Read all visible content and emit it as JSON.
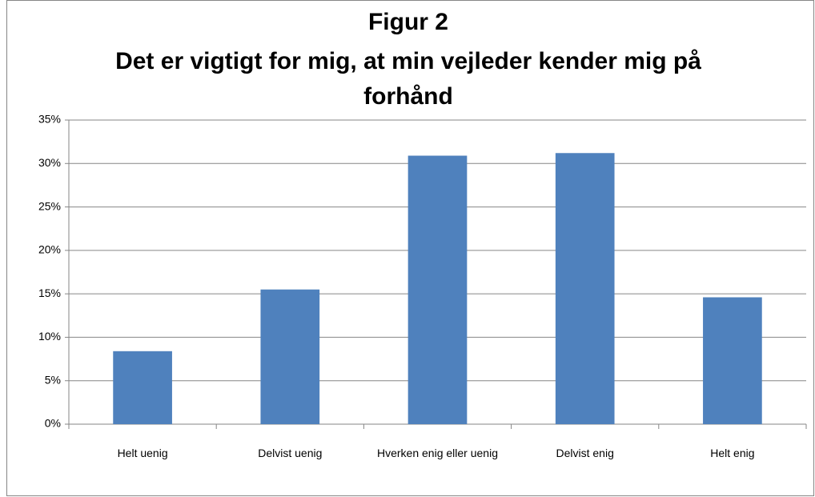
{
  "chart_data": {
    "type": "bar",
    "title": "Figur 2",
    "subtitle": "Det er vigtigt for mig, at min vejleder kender mig på forhånd",
    "categories": [
      "Helt uenig",
      "Delvist uenig",
      "Hverken enig eller uenig",
      "Delvist enig",
      "Helt enig"
    ],
    "values": [
      8.4,
      15.5,
      30.9,
      31.2,
      14.6
    ],
    "color": "#4f81bd",
    "ylim": [
      0,
      35
    ],
    "yticks": [
      {
        "value": 0,
        "label": "0%"
      },
      {
        "value": 5,
        "label": "5%"
      },
      {
        "value": 10,
        "label": "10%"
      },
      {
        "value": 15,
        "label": "15%"
      },
      {
        "value": 20,
        "label": "20%"
      },
      {
        "value": 25,
        "label": "25%"
      },
      {
        "value": 30,
        "label": "30%"
      },
      {
        "value": 35,
        "label": "35%"
      }
    ],
    "grid": true
  }
}
